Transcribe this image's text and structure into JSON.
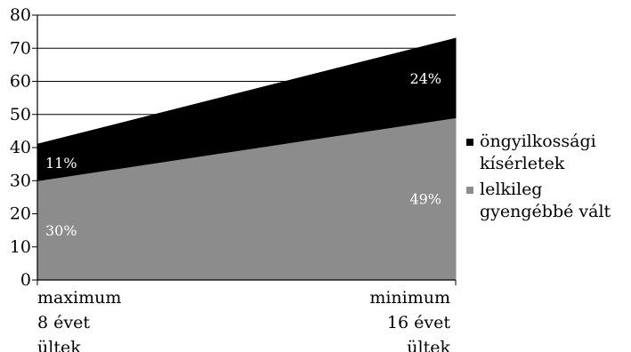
{
  "chart_data": {
    "type": "area",
    "stacked": true,
    "categories": [
      [
        "maximum",
        "8 évet",
        "ültek"
      ],
      [
        "minimum",
        "16 évet",
        "ültek"
      ]
    ],
    "ylim": [
      0,
      80
    ],
    "yticks": [
      "0",
      "10",
      "20",
      "30",
      "40",
      "50",
      "60",
      "70",
      "80"
    ],
    "grid": true,
    "legend_position": "right",
    "series": [
      {
        "name": "lelkileg gyengébbé vált",
        "values": [
          30,
          49
        ],
        "labels": [
          "30%",
          "49%"
        ],
        "color": "#8c8c8c"
      },
      {
        "name": "öngyilkossági kísérletek",
        "values": [
          11,
          24
        ],
        "labels": [
          "11%",
          "24%"
        ],
        "color": "#000000"
      }
    ],
    "legend": [
      {
        "lines": [
          "öngyilkossági",
          "kísérletek"
        ],
        "color": "#000000"
      },
      {
        "lines": [
          "lelkileg",
          "gyengébbé vált"
        ],
        "color": "#8c8c8c"
      }
    ]
  }
}
